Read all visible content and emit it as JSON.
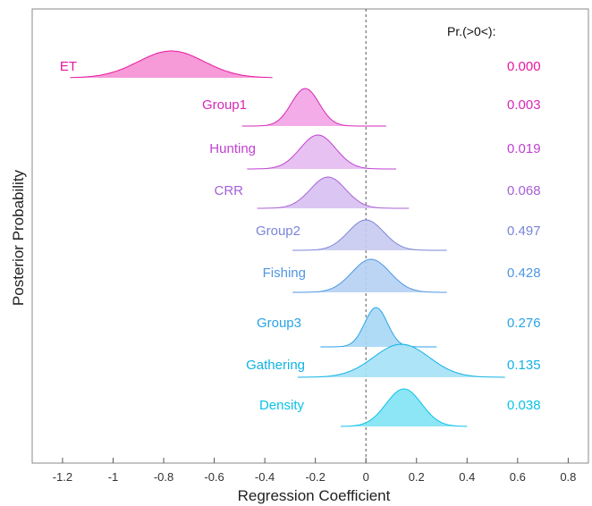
{
  "chart_data": {
    "type": "ridgeline",
    "xlabel": "Regression Coefficient",
    "ylabel": "Posterior Probability",
    "xlim": [
      -1.32,
      0.88
    ],
    "xticks": [
      -1.2,
      -1,
      -0.8,
      -0.6,
      -0.4,
      -0.2,
      0,
      0.2,
      0.4,
      0.6,
      0.8
    ],
    "xtick_labels": [
      "-1.2",
      "-1",
      "-0.8",
      "-0.6",
      "-0.4",
      "-0.2",
      "0",
      "0.2",
      "0.4",
      "0.6",
      "0.8"
    ],
    "reference_line_x": 0,
    "prob_header": "Pr.(>0<):",
    "series": [
      {
        "name": "ET",
        "mean": -0.77,
        "sd": 0.13,
        "min": -1.17,
        "max": -0.37,
        "prob": "0.000",
        "color": "#e8179f",
        "fill": "#f58fd4"
      },
      {
        "name": "Group1",
        "mean": -0.24,
        "sd": 0.055,
        "min": -0.49,
        "max": 0.08,
        "prob": "0.003",
        "color": "#d628b8",
        "fill": "#f2a3e6"
      },
      {
        "name": "Hunting",
        "mean": -0.19,
        "sd": 0.07,
        "min": -0.47,
        "max": 0.12,
        "prob": "0.019",
        "color": "#c241d2",
        "fill": "#e3baf0"
      },
      {
        "name": "CRR",
        "mean": -0.15,
        "sd": 0.07,
        "min": -0.43,
        "max": 0.17,
        "prob": "0.068",
        "color": "#a661d8",
        "fill": "#d7bff2"
      },
      {
        "name": "Group2",
        "mean": 0.0,
        "sd": 0.07,
        "min": -0.29,
        "max": 0.32,
        "prob": "0.497",
        "color": "#7b85d9",
        "fill": "#c6caf0"
      },
      {
        "name": "Fishing",
        "mean": 0.02,
        "sd": 0.075,
        "min": -0.29,
        "max": 0.32,
        "prob": "0.428",
        "color": "#4f96e3",
        "fill": "#b5d0f4"
      },
      {
        "name": "Group3",
        "mean": 0.04,
        "sd": 0.045,
        "min": -0.18,
        "max": 0.28,
        "prob": "0.276",
        "color": "#2aa3e6",
        "fill": "#a6d7f5"
      },
      {
        "name": "Gathering",
        "mean": 0.14,
        "sd": 0.11,
        "min": -0.27,
        "max": 0.55,
        "prob": "0.135",
        "color": "#12b2e4",
        "fill": "#a5e1f6"
      },
      {
        "name": "Density",
        "mean": 0.15,
        "sd": 0.07,
        "min": -0.1,
        "max": 0.4,
        "prob": "0.038",
        "color": "#0ac2e6",
        "fill": "#7fe3f4"
      }
    ]
  }
}
